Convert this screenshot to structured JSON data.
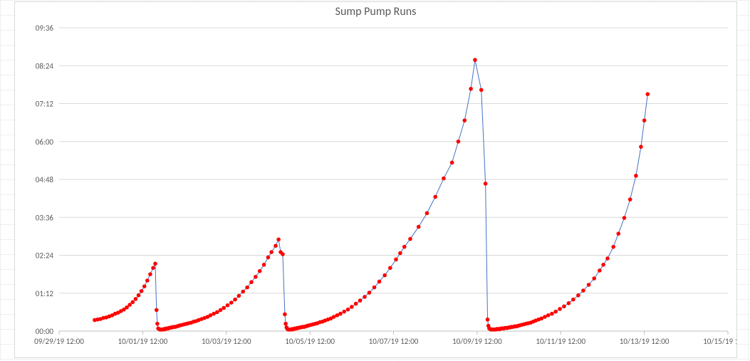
{
  "chart": {
    "type": "line+scatter",
    "title": "Sump Pump Runs",
    "title_fontsize": 16,
    "title_color": "#595959",
    "background_color": "#ffffff",
    "grid_color": "#d9d9d9",
    "axis_line_color": "#bfbfbf",
    "tick_label_color": "#595959",
    "tick_label_fontsize": 11,
    "line_color": "#4472c4",
    "line_width": 1,
    "marker_color": "#ff0000",
    "marker_radius": 2.8,
    "x_axis": {
      "min_ticks": 0,
      "max_ticks": 16,
      "tick_positions": [
        0,
        2,
        4,
        6,
        8,
        10,
        12,
        14,
        16
      ],
      "tick_labels": [
        "09/29/19 12:00",
        "10/01/19 12:00",
        "10/03/19 12:00",
        "10/05/19 12:00",
        "10/07/19 12:00",
        "10/09/19 12:00",
        "10/11/19 12:00",
        "10/13/19 12:00",
        "10/15/19 12:00"
      ]
    },
    "y_axis": {
      "min_minutes": 0,
      "max_minutes": 576,
      "tick_positions_minutes": [
        0,
        72,
        144,
        216,
        288,
        360,
        432,
        504,
        576
      ],
      "tick_labels": [
        "00:00",
        "01:12",
        "02:24",
        "03:36",
        "04:48",
        "06:00",
        "07:12",
        "08:24",
        "09:36"
      ]
    },
    "series_points": [
      [
        0.85,
        21
      ],
      [
        0.92,
        22
      ],
      [
        0.99,
        23
      ],
      [
        1.06,
        25
      ],
      [
        1.13,
        26
      ],
      [
        1.2,
        28
      ],
      [
        1.27,
        30
      ],
      [
        1.34,
        33
      ],
      [
        1.41,
        35
      ],
      [
        1.48,
        38
      ],
      [
        1.55,
        41
      ],
      [
        1.62,
        45
      ],
      [
        1.69,
        50
      ],
      [
        1.76,
        55
      ],
      [
        1.83,
        61
      ],
      [
        1.9,
        68
      ],
      [
        1.97,
        76
      ],
      [
        2.04,
        85
      ],
      [
        2.11,
        96
      ],
      [
        2.18,
        108
      ],
      [
        2.25,
        120
      ],
      [
        2.3,
        128
      ],
      [
        2.33,
        40
      ],
      [
        2.35,
        14
      ],
      [
        2.37,
        5
      ],
      [
        2.39,
        4
      ],
      [
        2.41,
        3
      ],
      [
        2.43,
        3
      ],
      [
        2.45,
        3
      ],
      [
        2.47,
        3
      ],
      [
        2.49,
        3
      ],
      [
        2.51,
        4
      ],
      [
        2.53,
        4
      ],
      [
        2.55,
        4
      ],
      [
        2.57,
        5
      ],
      [
        2.59,
        5
      ],
      [
        2.61,
        5
      ],
      [
        2.63,
        6
      ],
      [
        2.65,
        6
      ],
      [
        2.68,
        7
      ],
      [
        2.71,
        7
      ],
      [
        2.74,
        8
      ],
      [
        2.78,
        8
      ],
      [
        2.82,
        9
      ],
      [
        2.86,
        10
      ],
      [
        2.9,
        11
      ],
      [
        2.95,
        12
      ],
      [
        3.0,
        13
      ],
      [
        3.05,
        14
      ],
      [
        3.1,
        15
      ],
      [
        3.16,
        16
      ],
      [
        3.22,
        18
      ],
      [
        3.28,
        19
      ],
      [
        3.34,
        21
      ],
      [
        3.41,
        23
      ],
      [
        3.48,
        25
      ],
      [
        3.55,
        27
      ],
      [
        3.62,
        30
      ],
      [
        3.7,
        33
      ],
      [
        3.78,
        36
      ],
      [
        3.86,
        40
      ],
      [
        3.94,
        44
      ],
      [
        4.03,
        49
      ],
      [
        4.12,
        54
      ],
      [
        4.21,
        60
      ],
      [
        4.3,
        67
      ],
      [
        4.4,
        75
      ],
      [
        4.5,
        83
      ],
      [
        4.6,
        93
      ],
      [
        4.7,
        103
      ],
      [
        4.8,
        114
      ],
      [
        4.9,
        126
      ],
      [
        5.0,
        140
      ],
      [
        5.08,
        150
      ],
      [
        5.18,
        162
      ],
      [
        5.25,
        174
      ],
      [
        5.3,
        150
      ],
      [
        5.35,
        146
      ],
      [
        5.4,
        32
      ],
      [
        5.42,
        14
      ],
      [
        5.44,
        7
      ],
      [
        5.46,
        4
      ],
      [
        5.48,
        3
      ],
      [
        5.5,
        3
      ],
      [
        5.52,
        3
      ],
      [
        5.54,
        3
      ],
      [
        5.56,
        3
      ],
      [
        5.58,
        4
      ],
      [
        5.6,
        4
      ],
      [
        5.62,
        4
      ],
      [
        5.64,
        5
      ],
      [
        5.66,
        5
      ],
      [
        5.68,
        5
      ],
      [
        5.7,
        6
      ],
      [
        5.73,
        6
      ],
      [
        5.76,
        7
      ],
      [
        5.79,
        7
      ],
      [
        5.82,
        8
      ],
      [
        5.86,
        8
      ],
      [
        5.9,
        9
      ],
      [
        5.94,
        10
      ],
      [
        5.98,
        11
      ],
      [
        6.03,
        12
      ],
      [
        6.08,
        13
      ],
      [
        6.13,
        14
      ],
      [
        6.18,
        15
      ],
      [
        6.24,
        17
      ],
      [
        6.3,
        18
      ],
      [
        6.36,
        20
      ],
      [
        6.43,
        22
      ],
      [
        6.5,
        24
      ],
      [
        6.57,
        27
      ],
      [
        6.65,
        30
      ],
      [
        6.73,
        33
      ],
      [
        6.82,
        37
      ],
      [
        6.91,
        41
      ],
      [
        7.0,
        46
      ],
      [
        7.1,
        52
      ],
      [
        7.2,
        58
      ],
      [
        7.31,
        65
      ],
      [
        7.42,
        73
      ],
      [
        7.54,
        83
      ],
      [
        7.66,
        94
      ],
      [
        7.79,
        106
      ],
      [
        7.92,
        120
      ],
      [
        8.06,
        136
      ],
      [
        8.16,
        148
      ],
      [
        8.26,
        160
      ],
      [
        8.4,
        175
      ],
      [
        8.6,
        198
      ],
      [
        8.8,
        224
      ],
      [
        9.0,
        255
      ],
      [
        9.2,
        290
      ],
      [
        9.4,
        320
      ],
      [
        9.55,
        360
      ],
      [
        9.7,
        400
      ],
      [
        9.85,
        460
      ],
      [
        9.95,
        515
      ],
      [
        10.1,
        458
      ],
      [
        10.2,
        280
      ],
      [
        10.25,
        22
      ],
      [
        10.27,
        10
      ],
      [
        10.29,
        5
      ],
      [
        10.31,
        4
      ],
      [
        10.33,
        3
      ],
      [
        10.35,
        3
      ],
      [
        10.37,
        3
      ],
      [
        10.39,
        3
      ],
      [
        10.41,
        3
      ],
      [
        10.43,
        3
      ],
      [
        10.45,
        3
      ],
      [
        10.47,
        4
      ],
      [
        10.49,
        4
      ],
      [
        10.51,
        4
      ],
      [
        10.53,
        4
      ],
      [
        10.55,
        4
      ],
      [
        10.57,
        5
      ],
      [
        10.59,
        5
      ],
      [
        10.61,
        5
      ],
      [
        10.64,
        5
      ],
      [
        10.67,
        6
      ],
      [
        10.7,
        6
      ],
      [
        10.73,
        6
      ],
      [
        10.76,
        7
      ],
      [
        10.79,
        7
      ],
      [
        10.82,
        8
      ],
      [
        10.86,
        8
      ],
      [
        10.9,
        9
      ],
      [
        10.94,
        9
      ],
      [
        10.98,
        10
      ],
      [
        11.02,
        11
      ],
      [
        11.07,
        12
      ],
      [
        11.12,
        13
      ],
      [
        11.17,
        14
      ],
      [
        11.22,
        15
      ],
      [
        11.28,
        16
      ],
      [
        11.34,
        18
      ],
      [
        11.4,
        20
      ],
      [
        11.47,
        22
      ],
      [
        11.54,
        24
      ],
      [
        11.62,
        27
      ],
      [
        11.7,
        30
      ],
      [
        11.79,
        33
      ],
      [
        11.88,
        37
      ],
      [
        11.98,
        42
      ],
      [
        12.08,
        47
      ],
      [
        12.19,
        53
      ],
      [
        12.3,
        60
      ],
      [
        12.42,
        68
      ],
      [
        12.54,
        77
      ],
      [
        12.67,
        88
      ],
      [
        12.8,
        100
      ],
      [
        12.93,
        115
      ],
      [
        13.02,
        126
      ],
      [
        13.12,
        138
      ],
      [
        13.26,
        160
      ],
      [
        13.38,
        185
      ],
      [
        13.52,
        215
      ],
      [
        13.66,
        250
      ],
      [
        13.8,
        295
      ],
      [
        13.92,
        350
      ],
      [
        14.0,
        400
      ],
      [
        14.08,
        450
      ]
    ]
  }
}
